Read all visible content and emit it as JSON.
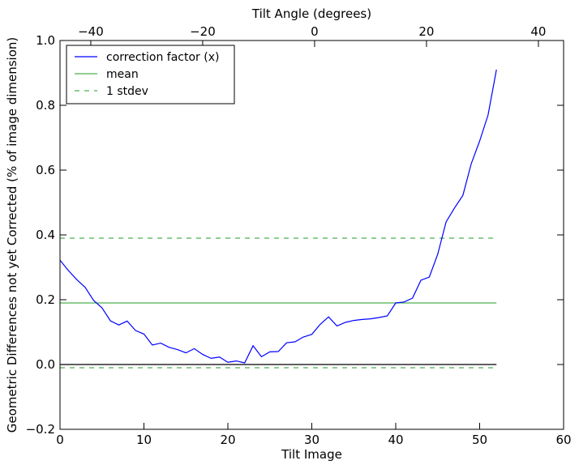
{
  "chart_data": {
    "type": "line",
    "xlabel": "Tilt Image",
    "ylabel": "Geometric Differences not yet Corrected (% of image dimension)",
    "top_xlabel": "Tilt Angle (degrees)",
    "xlim": [
      0,
      60
    ],
    "ylim": [
      -0.2,
      1.0
    ],
    "top_xlim": [
      -45.5,
      44.5
    ],
    "xticks": [
      0,
      10,
      20,
      30,
      40,
      50,
      60
    ],
    "xtick_labels": [
      "0",
      "10",
      "20",
      "30",
      "40",
      "50",
      "60"
    ],
    "yticks": [
      -0.2,
      0.0,
      0.2,
      0.4,
      0.6,
      0.8,
      1.0
    ],
    "ytick_labels": [
      "−0.2",
      "0.0",
      "0.2",
      "0.4",
      "0.6",
      "0.8",
      "1.0"
    ],
    "top_xticks": [
      -40,
      -20,
      0,
      20,
      40
    ],
    "top_xtick_labels": [
      "−40",
      "−20",
      "0",
      "20",
      "40"
    ],
    "grid": false,
    "legend_position": "top-left",
    "series": [
      {
        "name": "correction factor (x)",
        "color": "#0000ff",
        "style": "solid",
        "x": [
          0,
          1,
          2,
          3,
          4,
          5,
          6,
          7,
          8,
          9,
          10,
          11,
          12,
          13,
          14,
          15,
          16,
          17,
          18,
          19,
          20,
          21,
          22,
          23,
          24,
          25,
          26,
          27,
          28,
          29,
          30,
          31,
          32,
          33,
          34,
          35,
          36,
          37,
          38,
          39,
          40,
          41,
          42,
          43,
          44,
          45,
          46,
          47,
          48,
          49,
          50,
          51,
          52
        ],
        "values": [
          0.322,
          0.29,
          0.262,
          0.238,
          0.198,
          0.175,
          0.135,
          0.122,
          0.134,
          0.105,
          0.094,
          0.06,
          0.066,
          0.053,
          0.046,
          0.036,
          0.049,
          0.031,
          0.019,
          0.023,
          0.007,
          0.011,
          0.005,
          0.058,
          0.024,
          0.039,
          0.04,
          0.067,
          0.07,
          0.085,
          0.093,
          0.124,
          0.147,
          0.119,
          0.13,
          0.136,
          0.139,
          0.141,
          0.145,
          0.15,
          0.19,
          0.193,
          0.205,
          0.26,
          0.27,
          0.34,
          0.44,
          0.483,
          0.522,
          0.62,
          0.69,
          0.77,
          0.91
        ]
      },
      {
        "name": "mean",
        "color": "#4caf50",
        "style": "solid",
        "x": [
          0,
          52
        ],
        "values": [
          0.19,
          0.19
        ]
      },
      {
        "name": "1 stdev",
        "color": "#4caf50",
        "style": "dashed",
        "x": [
          0,
          52
        ],
        "values": [
          0.39,
          0.39
        ]
      },
      {
        "name": "",
        "color": "#4caf50",
        "style": "dashed",
        "x": [
          0,
          52
        ],
        "values": [
          -0.01,
          -0.01
        ]
      },
      {
        "name": "",
        "color": "#000000",
        "style": "solid",
        "x": [
          0,
          52
        ],
        "values": [
          0.0,
          0.0
        ]
      }
    ]
  }
}
